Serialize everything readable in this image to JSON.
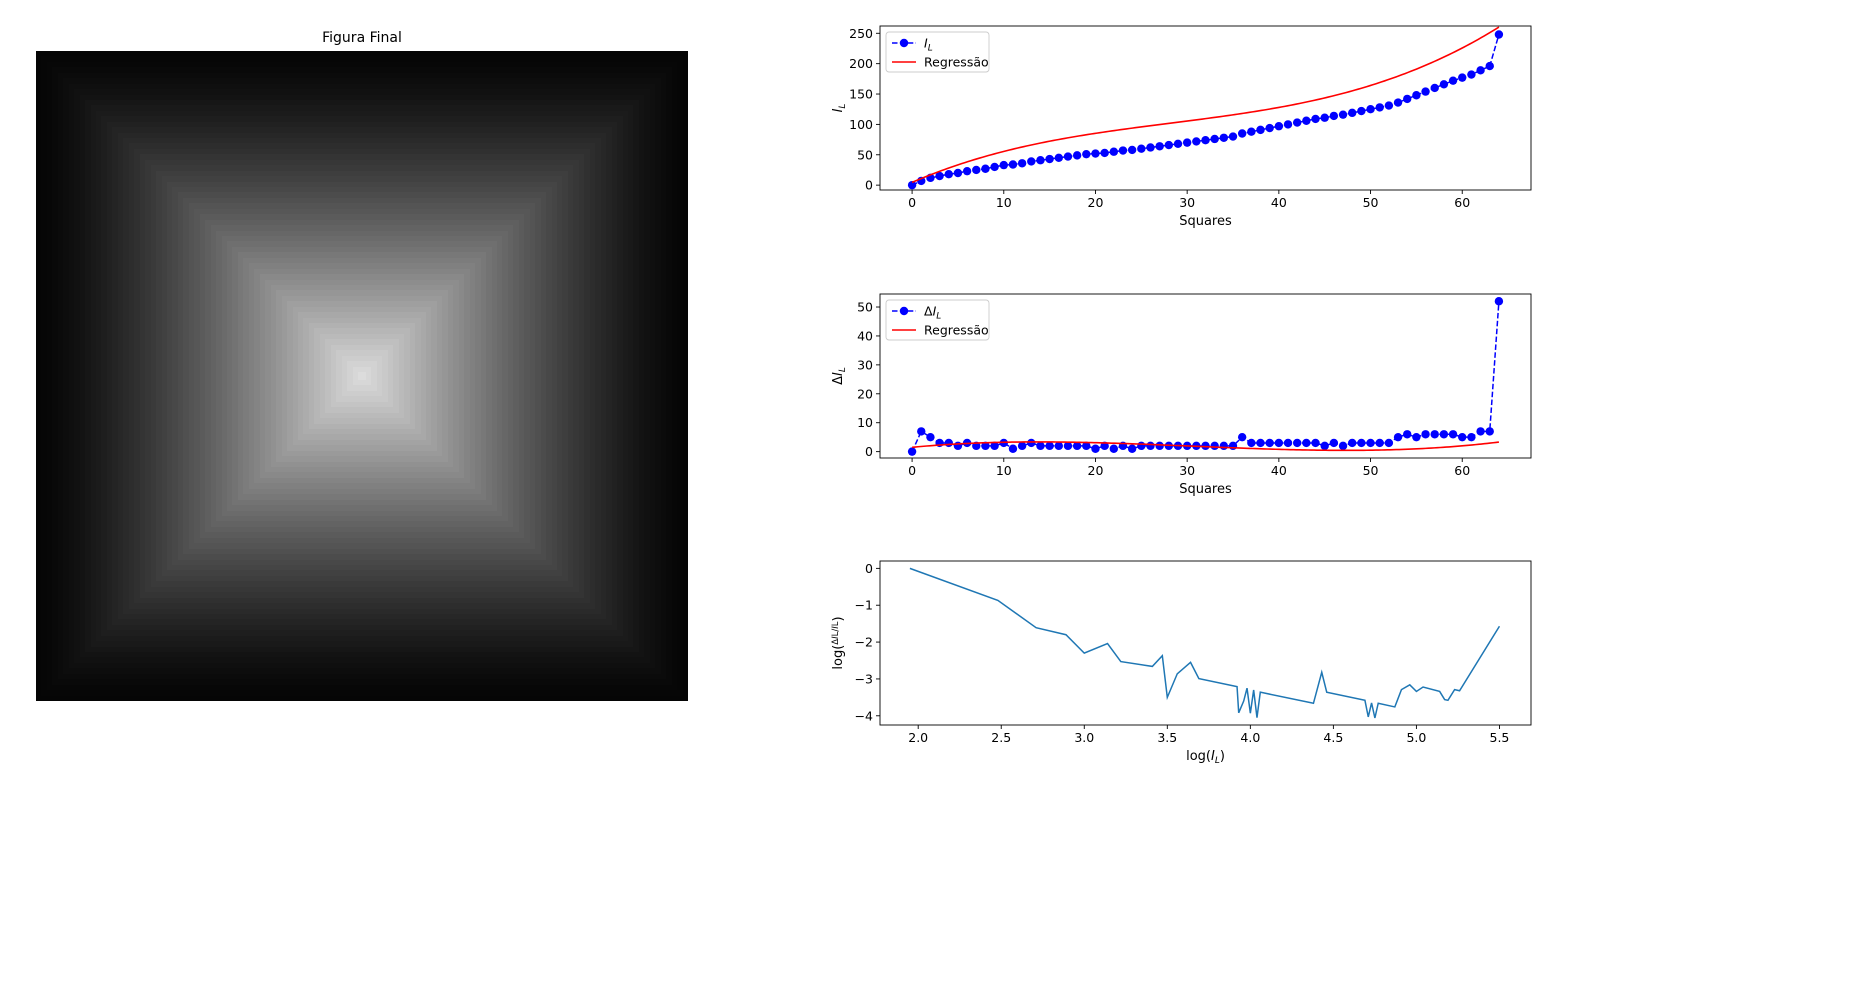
{
  "image_panel": {
    "title": "Figura Final"
  },
  "chart_data": [
    {
      "type": "line",
      "title": "",
      "xlabel": "Squares",
      "ylabel": "I_L",
      "xlim": [
        -3.5,
        67.5
      ],
      "ylim": [
        -8,
        262
      ],
      "xticks": [
        0,
        10,
        20,
        30,
        40,
        50,
        60
      ],
      "yticks": [
        0,
        50,
        100,
        150,
        200,
        250
      ],
      "legend": "upper-left",
      "series": [
        {
          "name": "I_L",
          "style": "dashed-markers",
          "color": "#0000ff",
          "x": [
            0,
            1,
            2,
            3,
            4,
            5,
            6,
            7,
            8,
            9,
            10,
            11,
            12,
            13,
            14,
            15,
            16,
            17,
            18,
            19,
            20,
            21,
            22,
            23,
            24,
            25,
            26,
            27,
            28,
            29,
            30,
            31,
            32,
            33,
            34,
            35,
            36,
            37,
            38,
            39,
            40,
            41,
            42,
            43,
            44,
            45,
            46,
            47,
            48,
            49,
            50,
            51,
            52,
            53,
            54,
            55,
            56,
            57,
            58,
            59,
            60,
            61,
            62,
            63,
            64
          ],
          "y": [
            0,
            7,
            12,
            15,
            18,
            20,
            23,
            25,
            27,
            30,
            33,
            34,
            36,
            39,
            41,
            43,
            45,
            47,
            49,
            51,
            52,
            53,
            55,
            57,
            58,
            60,
            62,
            64,
            66,
            68,
            70,
            72,
            74,
            76,
            78,
            80,
            85,
            88,
            91,
            94,
            97,
            100,
            103,
            106,
            109,
            111,
            114,
            116,
            119,
            122,
            125,
            128,
            131,
            136,
            142,
            148,
            154,
            160,
            166,
            172,
            177,
            182,
            189,
            196,
            248
          ]
        },
        {
          "name": "Regressão",
          "style": "line",
          "color": "#ff0000",
          "fit": "cubic",
          "coefficients": [
            4.5,
            6.55,
            -0.1644,
            0.001945
          ],
          "x_range": [
            0,
            64
          ]
        }
      ]
    },
    {
      "type": "line",
      "title": "",
      "xlabel": "Squares",
      "ylabel": "ΔI_L",
      "xlim": [
        -3.5,
        67.5
      ],
      "ylim": [
        -2.2,
        54.5
      ],
      "xticks": [
        0,
        10,
        20,
        30,
        40,
        50,
        60
      ],
      "yticks": [
        0,
        10,
        20,
        30,
        40,
        50
      ],
      "legend": "upper-left",
      "series": [
        {
          "name": "ΔI_L",
          "style": "dashed-markers",
          "color": "#0000ff",
          "x": [
            0,
            1,
            2,
            3,
            4,
            5,
            6,
            7,
            8,
            9,
            10,
            11,
            12,
            13,
            14,
            15,
            16,
            17,
            18,
            19,
            20,
            21,
            22,
            23,
            24,
            25,
            26,
            27,
            28,
            29,
            30,
            31,
            32,
            33,
            34,
            35,
            36,
            37,
            38,
            39,
            40,
            41,
            42,
            43,
            44,
            45,
            46,
            47,
            48,
            49,
            50,
            51,
            52,
            53,
            54,
            55,
            56,
            57,
            58,
            59,
            60,
            61,
            62,
            63,
            64
          ],
          "y": [
            0,
            7,
            5,
            3,
            3,
            2,
            3,
            2,
            2,
            2,
            3,
            1,
            2,
            3,
            2,
            2,
            2,
            2,
            2,
            2,
            1,
            2,
            1,
            2,
            1,
            2,
            2,
            2,
            2,
            2,
            2,
            2,
            2,
            2,
            2,
            2,
            5,
            3,
            3,
            3,
            3,
            3,
            3,
            3,
            3,
            2,
            3,
            2,
            3,
            3,
            3,
            3,
            3,
            5,
            6,
            5,
            6,
            6,
            6,
            6,
            5,
            5,
            7,
            7,
            52
          ]
        },
        {
          "name": "Regressão",
          "style": "line",
          "color": "#ff0000",
          "fit": "cubic",
          "coefficients": [
            1.5,
            0.3,
            -0.0141,
            0.000154
          ],
          "x_range": [
            0,
            64
          ]
        }
      ]
    },
    {
      "type": "line",
      "title": "",
      "xlabel": "log(I_L)",
      "ylabel": "log(ΔI_L / I_L)",
      "xlim": [
        1.77,
        5.69
      ],
      "ylim": [
        -4.25,
        0.2
      ],
      "xticks": [
        2.0,
        2.5,
        3.0,
        3.5,
        4.0,
        4.5,
        5.0,
        5.5
      ],
      "yticks": [
        0,
        -1,
        -2,
        -3,
        -4
      ],
      "series": [
        {
          "name": "",
          "style": "line",
          "color": "#1f77b4",
          "x": [
            1.95,
            2.48,
            2.71,
            2.89,
            3.0,
            3.14,
            3.22,
            3.41,
            3.47,
            3.5,
            3.56,
            3.64,
            3.69,
            3.92,
            3.93,
            3.96,
            3.98,
            4.0,
            4.02,
            4.04,
            4.06,
            4.38,
            4.43,
            4.46,
            4.69,
            4.71,
            4.73,
            4.75,
            4.77,
            4.87,
            4.91,
            4.96,
            5.0,
            5.04,
            5.14,
            5.17,
            5.19,
            5.23,
            5.26,
            5.5
          ],
          "y": [
            0,
            -0.87,
            -1.61,
            -1.8,
            -2.3,
            -2.04,
            -2.53,
            -2.66,
            -2.37,
            -3.5,
            -2.86,
            -2.55,
            -2.99,
            -3.21,
            -3.92,
            -3.6,
            -3.25,
            -3.93,
            -3.3,
            -4.05,
            -3.36,
            -3.66,
            -2.82,
            -3.36,
            -3.58,
            -4.03,
            -3.65,
            -4.06,
            -3.66,
            -3.76,
            -3.29,
            -3.16,
            -3.34,
            -3.22,
            -3.34,
            -3.56,
            -3.58,
            -3.29,
            -3.32,
            -1.57
          ]
        }
      ]
    }
  ]
}
